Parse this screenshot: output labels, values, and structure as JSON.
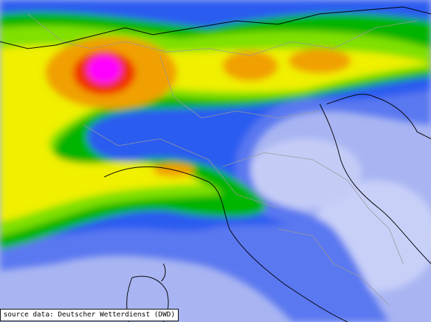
{
  "source_label": "source data: Deutscher Wetterdienst (DWD)"
}
